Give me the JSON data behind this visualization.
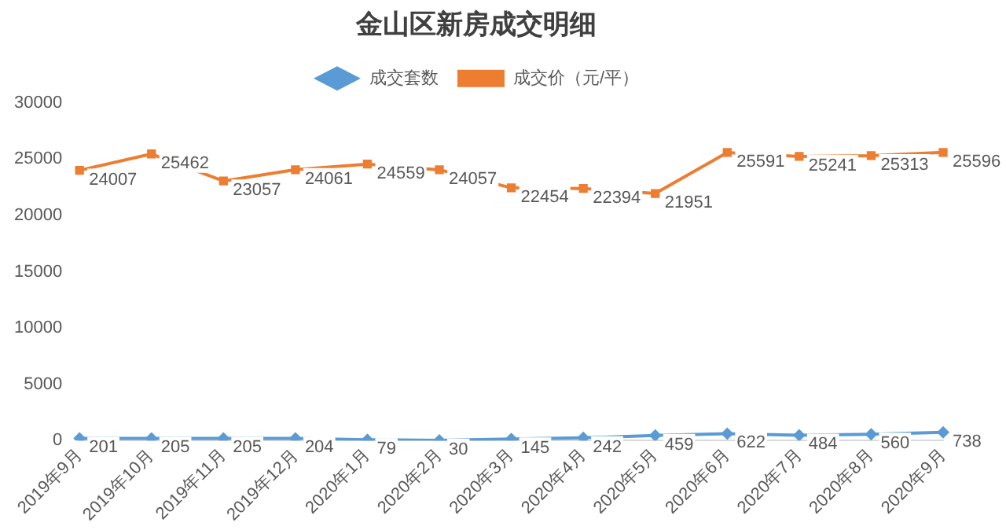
{
  "chart_data": {
    "type": "line",
    "title": "金山区新房成交明细",
    "categories": [
      "2019年9月",
      "2019年10月",
      "2019年11月",
      "2019年12月",
      "2020年1月",
      "2020年2月",
      "2020年3月",
      "2020年4月",
      "2020年5月",
      "2020年6月",
      "2020年7月",
      "2020年8月",
      "2020年9月"
    ],
    "series": [
      {
        "name": "成交套数",
        "color": "#5b9bd5",
        "marker": "diamond",
        "values": [
          201,
          205,
          205,
          204,
          79,
          30,
          145,
          242,
          459,
          622,
          484,
          560,
          738
        ]
      },
      {
        "name": "成交价（元/平）",
        "color": "#ed7d31",
        "marker": "square",
        "values": [
          24007,
          25462,
          23057,
          24061,
          24559,
          24057,
          22454,
          22394,
          21951,
          25591,
          25241,
          25313,
          25596
        ]
      }
    ],
    "ylim": [
      0,
      30000
    ],
    "yticks": [
      0,
      5000,
      10000,
      15000,
      20000,
      25000,
      30000
    ],
    "grid": false,
    "legend": "top",
    "data_labels": true
  }
}
